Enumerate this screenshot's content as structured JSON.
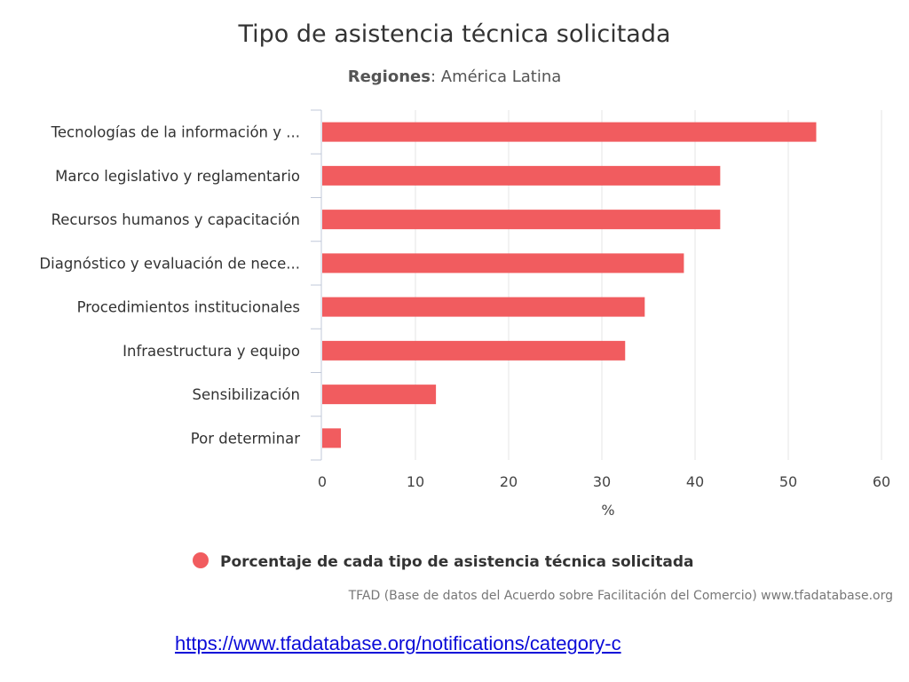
{
  "chart_data": {
    "type": "bar",
    "orientation": "horizontal",
    "title": "Tipo de asistencia técnica solicitada",
    "subtitle": {
      "key": "Regiones",
      "value": "América Latina"
    },
    "categories": [
      "Tecnologías de la información y ...",
      "Marco legislativo y reglamentario",
      "Recursos humanos y capacitación",
      "Diagnóstico y evaluación de nece...",
      "Procedimientos institucionales",
      "Infraestructura y equipo",
      "Sensibilización",
      "Por determinar"
    ],
    "series": [
      {
        "name": "Porcentaje de cada tipo de asistencia técnica solicitada",
        "color": "#f15c5f",
        "values": [
          53,
          42.7,
          42.7,
          38.8,
          34.6,
          32.5,
          12.2,
          2
        ]
      }
    ],
    "xlabel": "%",
    "xlim": [
      0,
      60
    ],
    "xticks": [
      0,
      10,
      20,
      30,
      40,
      50,
      60
    ],
    "grid": true,
    "legend": "bottom-center",
    "credits": "TFAD (Base de datos del Acuerdo sobre Facilitación del Comercio) www.tfadatabase.org"
  },
  "source_link": "https://www.tfadatabase.org/notifications/category-c"
}
